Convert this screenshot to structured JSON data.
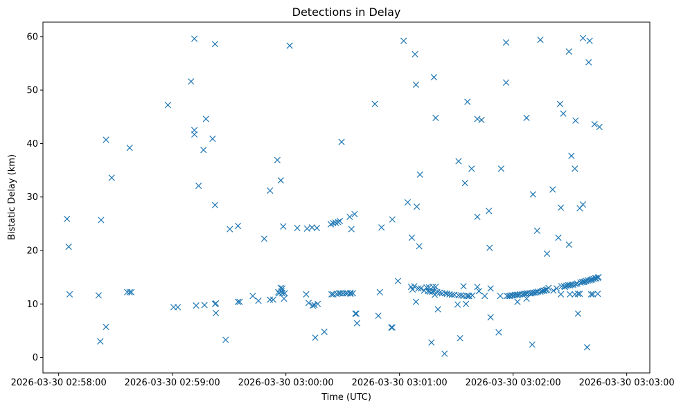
{
  "chart_data": {
    "type": "scatter",
    "title": "Detections in Delay",
    "xlabel": "Time (UTC)",
    "ylabel": "Bistatic Delay (km)",
    "marker": "x",
    "color": "#1f77b4",
    "x_unit": "seconds since 2026-03-30 02:58:00",
    "xlim": [
      -8.3,
      312.2
    ],
    "ylim": [
      -2.9,
      62.7
    ],
    "x_ticks": [
      {
        "value": 0,
        "label": "2026-03-30 02:58:00"
      },
      {
        "value": 60,
        "label": "2026-03-30 02:59:00"
      },
      {
        "value": 120,
        "label": "2026-03-30 03:00:00"
      },
      {
        "value": 180,
        "label": "2026-03-30 03:01:00"
      },
      {
        "value": 240,
        "label": "2026-03-30 03:02:00"
      },
      {
        "value": 300,
        "label": "2026-03-30 03:03:00"
      }
    ],
    "y_ticks": [
      {
        "value": 0,
        "label": "0"
      },
      {
        "value": 10,
        "label": "10"
      },
      {
        "value": 20,
        "label": "20"
      },
      {
        "value": 30,
        "label": "30"
      },
      {
        "value": 40,
        "label": "40"
      },
      {
        "value": 50,
        "label": "50"
      },
      {
        "value": 60,
        "label": "60"
      }
    ],
    "series": [
      {
        "name": "detections",
        "points": [
          [
            4.4,
            25.9
          ],
          [
            5.3,
            20.7
          ],
          [
            5.8,
            11.8
          ],
          [
            21.1,
            11.6
          ],
          [
            22.0,
            3.0
          ],
          [
            22.4,
            25.7
          ],
          [
            25.0,
            40.7
          ],
          [
            25.0,
            5.7
          ],
          [
            28.0,
            33.6
          ],
          [
            36.2,
            12.2
          ],
          [
            37.5,
            12.2
          ],
          [
            38.4,
            12.2
          ],
          [
            37.5,
            39.2
          ],
          [
            57.7,
            47.2
          ],
          [
            60.7,
            9.4
          ],
          [
            62.9,
            9.4
          ],
          [
            69.9,
            51.6
          ],
          [
            71.7,
            59.6
          ],
          [
            71.7,
            42.5
          ],
          [
            71.7,
            41.7
          ],
          [
            72.6,
            9.7
          ],
          [
            73.9,
            32.1
          ],
          [
            76.5,
            38.8
          ],
          [
            77.0,
            9.8
          ],
          [
            77.8,
            44.6
          ],
          [
            81.3,
            40.9
          ],
          [
            82.6,
            58.6
          ],
          [
            82.6,
            28.5
          ],
          [
            82.6,
            10.0
          ],
          [
            83.0,
            10.1
          ],
          [
            83.0,
            8.3
          ],
          [
            88.2,
            3.3
          ],
          [
            90.4,
            24.0
          ],
          [
            94.7,
            24.6
          ],
          [
            94.7,
            10.4
          ],
          [
            95.6,
            10.4
          ],
          [
            102.5,
            11.5
          ],
          [
            105.5,
            10.6
          ],
          [
            108.6,
            22.2
          ],
          [
            111.6,
            31.2
          ],
          [
            111.6,
            10.8
          ],
          [
            113.3,
            10.8
          ],
          [
            115.5,
            36.9
          ],
          [
            116.0,
            12.2
          ],
          [
            116.4,
            12.0
          ],
          [
            117.3,
            13.0
          ],
          [
            117.3,
            33.1
          ],
          [
            117.7,
            12.4
          ],
          [
            118.1,
            12.0
          ],
          [
            118.1,
            12.9
          ],
          [
            118.6,
            24.5
          ],
          [
            119.0,
            11.0
          ],
          [
            119.4,
            12.0
          ],
          [
            122.0,
            58.3
          ],
          [
            126.0,
            24.2
          ],
          [
            130.7,
            11.8
          ],
          [
            131.2,
            24.1
          ],
          [
            132.0,
            10.2
          ],
          [
            133.8,
            24.3
          ],
          [
            134.2,
            9.7
          ],
          [
            135.1,
            9.8
          ],
          [
            135.5,
            3.7
          ],
          [
            136.4,
            24.2
          ],
          [
            136.8,
            10.0
          ],
          [
            140.3,
            4.8
          ],
          [
            143.7,
            24.9
          ],
          [
            144.1,
            11.8
          ],
          [
            145.0,
            25.1
          ],
          [
            145.0,
            11.8
          ],
          [
            146.3,
            25.2
          ],
          [
            146.8,
            11.9
          ],
          [
            147.6,
            25.3
          ],
          [
            148.1,
            12.0
          ],
          [
            148.5,
            25.5
          ],
          [
            148.9,
            12.0
          ],
          [
            149.4,
            40.3
          ],
          [
            150.2,
            12.0
          ],
          [
            151.5,
            12.0
          ],
          [
            152.4,
            12.0
          ],
          [
            153.7,
            26.3
          ],
          [
            154.1,
            12.1
          ],
          [
            154.1,
            11.9
          ],
          [
            154.6,
            24.0
          ],
          [
            155.4,
            12.0
          ],
          [
            156.3,
            26.8
          ],
          [
            156.7,
            8.2
          ],
          [
            157.2,
            8.2
          ],
          [
            157.6,
            6.4
          ],
          [
            167.0,
            47.4
          ],
          [
            168.8,
            7.8
          ],
          [
            169.6,
            12.2
          ],
          [
            170.5,
            24.3
          ],
          [
            175.7,
            5.6
          ],
          [
            176.2,
            5.6
          ],
          [
            176.2,
            25.8
          ],
          [
            179.2,
            14.3
          ],
          [
            182.2,
            59.2
          ],
          [
            184.3,
            29.0
          ],
          [
            186.1,
            13.2
          ],
          [
            186.5,
            22.4
          ],
          [
            186.9,
            12.7
          ],
          [
            187.8,
            13.3
          ],
          [
            188.2,
            56.7
          ],
          [
            188.7,
            51.0
          ],
          [
            188.7,
            10.4
          ],
          [
            189.1,
            28.2
          ],
          [
            190.0,
            12.9
          ],
          [
            190.4,
            20.8
          ],
          [
            190.8,
            34.2
          ],
          [
            191.3,
            12.9
          ],
          [
            193.0,
            12.5
          ],
          [
            194.3,
            13.1
          ],
          [
            195.1,
            12.4
          ],
          [
            195.6,
            13.1
          ],
          [
            196.0,
            12.3
          ],
          [
            196.9,
            2.8
          ],
          [
            197.3,
            12.3
          ],
          [
            197.7,
            13.2
          ],
          [
            198.2,
            52.4
          ],
          [
            198.2,
            12.4
          ],
          [
            198.6,
            11.7
          ],
          [
            199.1,
            13.2
          ],
          [
            199.1,
            44.8
          ],
          [
            199.9,
            12.2
          ],
          [
            200.3,
            9.0
          ],
          [
            201.2,
            12.1
          ],
          [
            202.5,
            12.0
          ],
          [
            203.8,
            0.7
          ],
          [
            204.2,
            12.0
          ],
          [
            205.1,
            11.9
          ],
          [
            206.4,
            11.8
          ],
          [
            207.7,
            11.7
          ],
          [
            209.0,
            11.7
          ],
          [
            210.7,
            9.9
          ],
          [
            211.2,
            36.7
          ],
          [
            211.2,
            11.6
          ],
          [
            212.0,
            3.6
          ],
          [
            212.5,
            11.6
          ],
          [
            213.8,
            13.3
          ],
          [
            213.8,
            11.5
          ],
          [
            214.6,
            32.6
          ],
          [
            215.1,
            10.0
          ],
          [
            215.5,
            11.5
          ],
          [
            215.9,
            47.8
          ],
          [
            216.4,
            11.5
          ],
          [
            216.8,
            11.5
          ],
          [
            218.1,
            35.3
          ],
          [
            218.5,
            11.6
          ],
          [
            221.1,
            26.3
          ],
          [
            221.1,
            44.6
          ],
          [
            221.1,
            13.2
          ],
          [
            222.0,
            12.4
          ],
          [
            223.3,
            44.4
          ],
          [
            225.0,
            11.5
          ],
          [
            227.2,
            27.4
          ],
          [
            227.6,
            20.5
          ],
          [
            228.1,
            12.9
          ],
          [
            228.1,
            7.5
          ],
          [
            232.4,
            4.7
          ],
          [
            233.2,
            11.5
          ],
          [
            233.7,
            35.3
          ],
          [
            236.3,
            58.9
          ],
          [
            236.3,
            51.4
          ],
          [
            236.7,
            11.5
          ],
          [
            237.6,
            11.5
          ],
          [
            238.4,
            11.5
          ],
          [
            239.3,
            11.6
          ],
          [
            240.2,
            11.6
          ],
          [
            241.0,
            11.7
          ],
          [
            241.9,
            11.7
          ],
          [
            242.3,
            10.4
          ],
          [
            242.7,
            11.7
          ],
          [
            243.6,
            11.8
          ],
          [
            244.9,
            11.8
          ],
          [
            245.8,
            11.9
          ],
          [
            246.6,
            11.9
          ],
          [
            247.1,
            44.8
          ],
          [
            247.1,
            11.0
          ],
          [
            247.5,
            12.0
          ],
          [
            248.8,
            12.0
          ],
          [
            249.7,
            12.0
          ],
          [
            250.1,
            2.4
          ],
          [
            250.5,
            12.1
          ],
          [
            250.5,
            30.5
          ],
          [
            251.4,
            12.1
          ],
          [
            252.3,
            12.2
          ],
          [
            252.7,
            23.7
          ],
          [
            253.1,
            12.3
          ],
          [
            254.4,
            12.3
          ],
          [
            254.4,
            59.4
          ],
          [
            255.3,
            12.4
          ],
          [
            256.1,
            12.5
          ],
          [
            256.6,
            12.5
          ],
          [
            257.4,
            12.6
          ],
          [
            257.9,
            19.4
          ],
          [
            257.9,
            12.7
          ],
          [
            258.7,
            13.0
          ],
          [
            260.9,
            31.4
          ],
          [
            261.3,
            12.5
          ],
          [
            263.0,
            12.9
          ],
          [
            263.9,
            22.4
          ],
          [
            264.8,
            47.4
          ],
          [
            265.2,
            28.0
          ],
          [
            265.2,
            11.8
          ],
          [
            265.6,
            13.3
          ],
          [
            266.5,
            45.6
          ],
          [
            266.9,
            13.3
          ],
          [
            267.4,
            13.2
          ],
          [
            268.2,
            13.4
          ],
          [
            269.1,
            13.5
          ],
          [
            269.5,
            57.2
          ],
          [
            269.5,
            21.1
          ],
          [
            270.0,
            11.8
          ],
          [
            270.0,
            13.5
          ],
          [
            270.8,
            13.6
          ],
          [
            270.8,
            37.7
          ],
          [
            271.7,
            13.6
          ],
          [
            272.6,
            11.8
          ],
          [
            272.6,
            35.3
          ],
          [
            273.0,
            44.3
          ],
          [
            273.0,
            13.7
          ],
          [
            273.9,
            13.8
          ],
          [
            274.3,
            11.9
          ],
          [
            274.3,
            8.2
          ],
          [
            275.2,
            11.9
          ],
          [
            275.2,
            27.9
          ],
          [
            275.6,
            14.0
          ],
          [
            276.5,
            14.1
          ],
          [
            276.9,
            28.6
          ],
          [
            276.9,
            59.7
          ],
          [
            277.3,
            14.1
          ],
          [
            277.8,
            14.2
          ],
          [
            278.6,
            14.3
          ],
          [
            279.1,
            1.9
          ],
          [
            279.5,
            14.4
          ],
          [
            279.9,
            55.2
          ],
          [
            280.4,
            14.4
          ],
          [
            280.4,
            59.2
          ],
          [
            281.2,
            14.5
          ],
          [
            281.2,
            11.8
          ],
          [
            281.7,
            14.6
          ],
          [
            282.1,
            11.8
          ],
          [
            282.5,
            14.7
          ],
          [
            283.0,
            43.6
          ],
          [
            283.4,
            14.8
          ],
          [
            283.8,
            14.8
          ],
          [
            284.7,
            14.9
          ],
          [
            284.7,
            11.9
          ],
          [
            285.1,
            15.0
          ],
          [
            285.6,
            43.1
          ]
        ]
      }
    ]
  }
}
